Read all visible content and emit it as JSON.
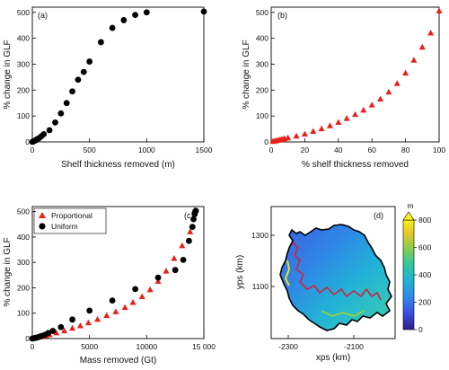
{
  "colors": {
    "black": "#000000",
    "red": "#e8201a",
    "outline": "#000000"
  },
  "chart_data": [
    {
      "type": "scatter",
      "panel_label": "(a)",
      "xlabel": "Shelf thickness removed (m)",
      "ylabel": "% change in GLF",
      "xlim": [
        0,
        1500
      ],
      "ylim": [
        0,
        520
      ],
      "xticks": [
        0,
        500,
        1000,
        1500
      ],
      "xtick_labels": [
        "0",
        "500",
        "1000",
        "1500"
      ],
      "yticks": [
        0,
        100,
        200,
        300,
        400,
        500
      ],
      "ytick_labels": [
        "0",
        "100",
        "200",
        "300",
        "400",
        "500"
      ],
      "series": [
        {
          "marker": "circle",
          "color": "#000000",
          "x": [
            0,
            10,
            20,
            30,
            40,
            60,
            80,
            100,
            150,
            200,
            250,
            300,
            350,
            400,
            450,
            500,
            600,
            700,
            800,
            900,
            1000,
            1500
          ],
          "y": [
            0,
            2,
            4,
            7,
            10,
            15,
            22,
            30,
            45,
            75,
            110,
            150,
            195,
            240,
            270,
            310,
            385,
            440,
            470,
            490,
            500,
            503
          ]
        }
      ]
    },
    {
      "type": "scatter",
      "panel_label": "(b)",
      "xlabel": "% shelf thickness removed",
      "ylabel": "% change in GLF",
      "xlim": [
        0,
        100
      ],
      "ylim": [
        0,
        520
      ],
      "xticks": [
        0,
        20,
        40,
        60,
        80,
        100
      ],
      "xtick_labels": [
        "0",
        "20",
        "40",
        "60",
        "80",
        "100"
      ],
      "yticks": [
        0,
        100,
        200,
        300,
        400,
        500
      ],
      "ytick_labels": [
        "0",
        "100",
        "200",
        "300",
        "400",
        "500"
      ],
      "series": [
        {
          "marker": "triangle",
          "color": "#e8201a",
          "x": [
            1,
            2,
            3,
            4,
            5,
            6,
            7,
            8,
            10,
            15,
            20,
            25,
            30,
            35,
            40,
            45,
            50,
            55,
            60,
            65,
            70,
            75,
            80,
            85,
            90,
            95,
            100
          ],
          "y": [
            1,
            3,
            4,
            6,
            7,
            9,
            10,
            12,
            15,
            22,
            30,
            40,
            50,
            62,
            75,
            90,
            105,
            122,
            142,
            165,
            192,
            225,
            265,
            315,
            365,
            420,
            505
          ]
        }
      ]
    },
    {
      "type": "scatter",
      "panel_label": "(c)",
      "xlabel": "Mass removed (Gt)",
      "ylabel": "% change in GLF",
      "xlim": [
        0,
        15000
      ],
      "ylim": [
        0,
        520
      ],
      "xticks": [
        0,
        5000,
        10000,
        15000
      ],
      "xtick_labels": [
        "0",
        "5000",
        "10000",
        "15 000"
      ],
      "yticks": [
        0,
        100,
        200,
        300,
        400,
        500
      ],
      "ytick_labels": [
        "0",
        "100",
        "200",
        "300",
        "400",
        "500"
      ],
      "legend": {
        "position": "top-left",
        "entries": [
          "Proportional",
          "Uniform"
        ]
      },
      "series": [
        {
          "name": "Proportional",
          "marker": "triangle",
          "color": "#e8201a",
          "x": [
            150,
            300,
            450,
            600,
            750,
            900,
            1050,
            1200,
            1500,
            2100,
            2800,
            3500,
            4200,
            4900,
            5700,
            6500,
            7300,
            8100,
            8800,
            9600,
            10300,
            11000,
            11700,
            12400,
            13100,
            13800,
            14200
          ],
          "y": [
            1,
            3,
            4,
            6,
            7,
            9,
            10,
            12,
            15,
            22,
            30,
            40,
            50,
            62,
            75,
            90,
            105,
            122,
            142,
            165,
            192,
            225,
            265,
            315,
            365,
            420,
            505
          ]
        },
        {
          "name": "Uniform",
          "marker": "circle",
          "color": "#000000",
          "x": [
            0,
            200,
            400,
            600,
            800,
            1100,
            1400,
            1800,
            2500,
            3500,
            5000,
            7000,
            9000,
            11000,
            12500,
            13200,
            13700,
            14000,
            14100,
            14200,
            14250,
            14300
          ],
          "y": [
            0,
            2,
            4,
            7,
            10,
            15,
            22,
            30,
            45,
            75,
            110,
            150,
            195,
            240,
            270,
            310,
            385,
            440,
            470,
            490,
            500,
            503
          ]
        }
      ]
    },
    {
      "type": "heatmap",
      "panel_label": "(d)",
      "xlabel": "xps (km)",
      "ylabel": "yps (km)",
      "xticks": [
        -2300,
        -2100
      ],
      "xtick_labels": [
        "-2300",
        "-2100"
      ],
      "yticks": [
        1300,
        1100
      ],
      "ytick_labels": [
        "1300",
        "1100"
      ],
      "colorbar": {
        "title": "m",
        "min": 0,
        "max": 800,
        "ticks": [
          0,
          200,
          400,
          600,
          800
        ],
        "tick_labels": [
          "0",
          "200",
          "400",
          "600",
          "800"
        ]
      }
    }
  ]
}
